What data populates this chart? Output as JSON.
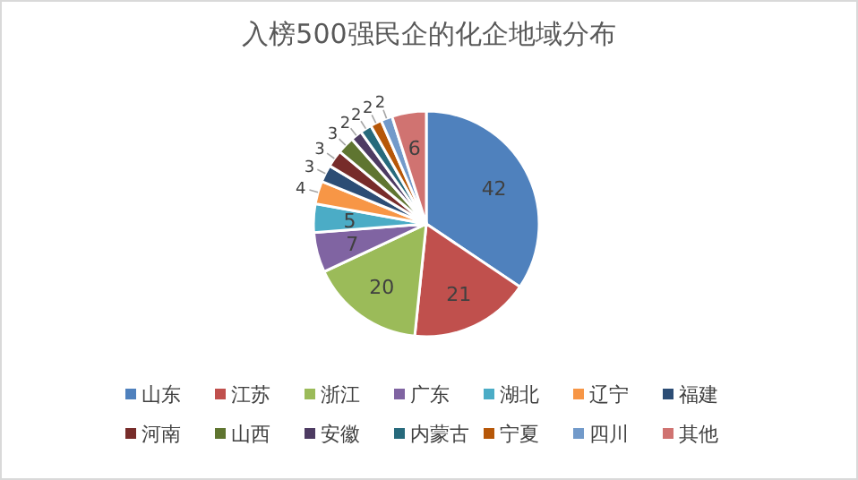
{
  "chart_data": {
    "type": "pie",
    "title": "入榜500强民企的化企地域分布",
    "categories": [
      "山东",
      "江苏",
      "浙江",
      "广东",
      "湖北",
      "辽宁",
      "福建",
      "河南",
      "山西",
      "安徽",
      "内蒙古",
      "宁夏",
      "四川",
      "其他"
    ],
    "values": [
      42,
      21,
      20,
      7,
      5,
      4,
      3,
      3,
      3,
      2,
      2,
      2,
      2,
      6
    ],
    "colors": [
      "#4f81bd",
      "#c0504d",
      "#9bbb59",
      "#8064a2",
      "#4bacc6",
      "#f79646",
      "#2c4d75",
      "#772c2a",
      "#5f7530",
      "#4d3b62",
      "#276a7c",
      "#b65708",
      "#729aca",
      "#d07371"
    ],
    "data_labels": true,
    "legend": "bottom"
  }
}
